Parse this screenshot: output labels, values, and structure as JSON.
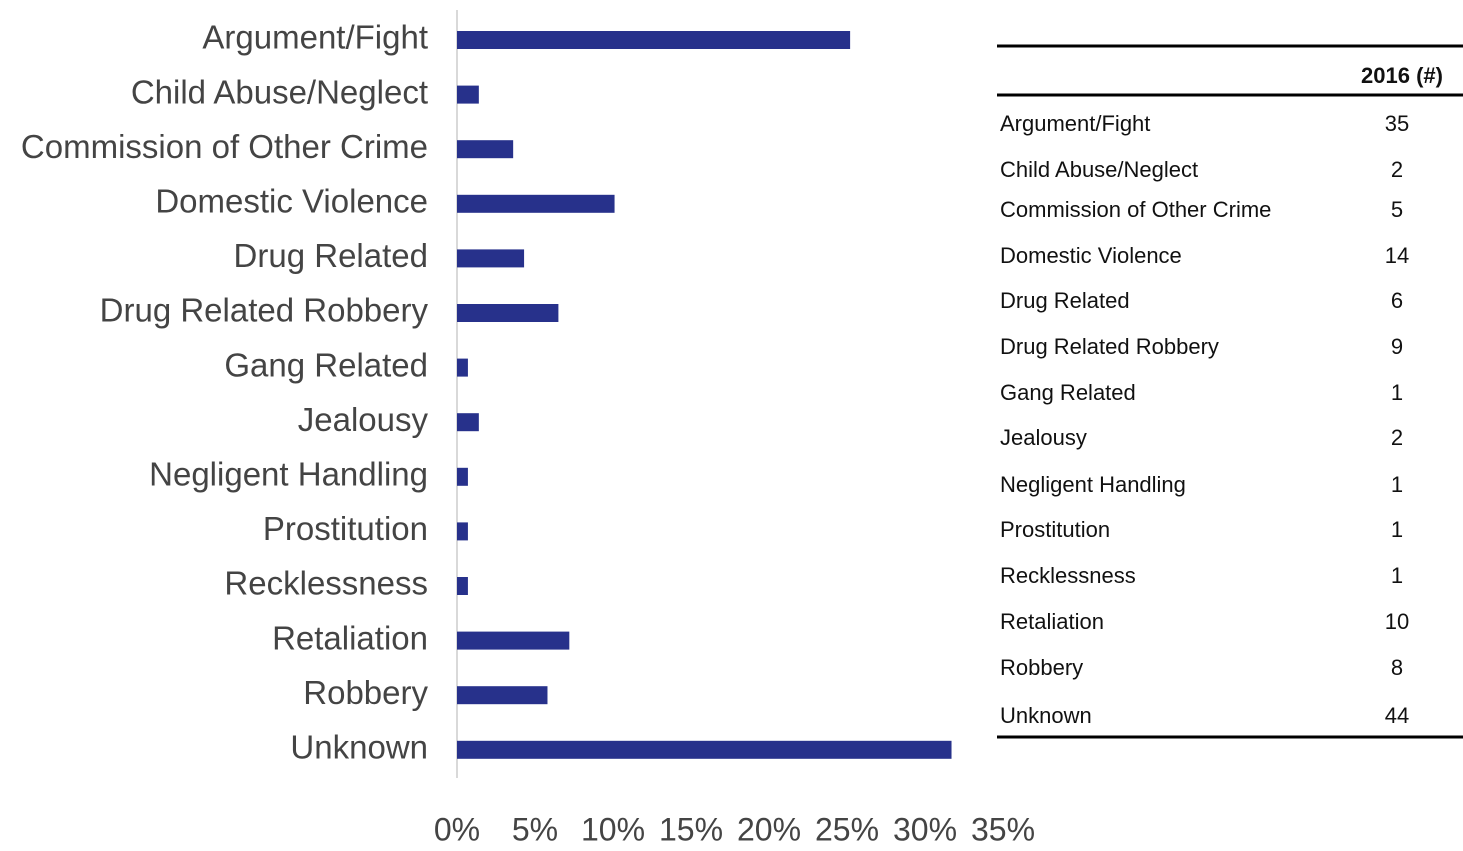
{
  "chart_data": {
    "type": "bar",
    "orientation": "horizontal",
    "categories": [
      "Argument/Fight",
      "Child Abuse/Neglect",
      "Commission of Other Crime",
      "Domestic Violence",
      "Drug Related",
      "Drug Related Robbery",
      "Gang Related",
      "Jealousy",
      "Negligent Handling",
      "Prostitution",
      "Recklessness",
      "Retaliation",
      "Robbery",
      "Unknown"
    ],
    "values": [
      25.2,
      1.4,
      3.6,
      10.1,
      4.3,
      6.5,
      0.7,
      1.4,
      0.7,
      0.7,
      0.7,
      7.2,
      5.8,
      31.7
    ],
    "color": "#27318b",
    "xlim": [
      0,
      35
    ],
    "xticks": [
      {
        "value": 0,
        "label": "0%"
      },
      {
        "value": 5,
        "label": "5%"
      },
      {
        "value": 10,
        "label": "10%"
      },
      {
        "value": 15,
        "label": "15%"
      },
      {
        "value": 20,
        "label": "20%"
      },
      {
        "value": 25,
        "label": "25%"
      },
      {
        "value": 30,
        "label": "30%"
      },
      {
        "value": 35,
        "label": "35%"
      }
    ],
    "grid": false
  },
  "table": {
    "header": "2016 (#)",
    "rows": [
      [
        "Argument/Fight",
        35
      ],
      [
        "Child Abuse/Neglect",
        2
      ],
      [
        "Commission of Other Crime",
        5
      ],
      [
        "Domestic Violence",
        14
      ],
      [
        "Drug Related",
        6
      ],
      [
        "Drug Related Robbery",
        9
      ],
      [
        "Gang Related",
        1
      ],
      [
        "Jealousy",
        2
      ],
      [
        "Negligent Handling",
        1
      ],
      [
        "Prostitution",
        1
      ],
      [
        "Recklessness",
        1
      ],
      [
        "Retaliation",
        10
      ],
      [
        "Robbery",
        8
      ],
      [
        "Unknown",
        44
      ]
    ]
  }
}
